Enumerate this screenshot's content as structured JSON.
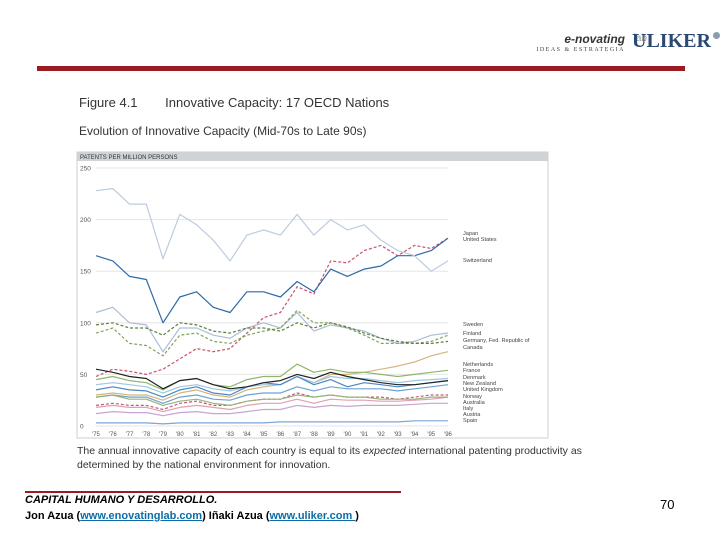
{
  "header": {
    "enovating_logo": "e-novating",
    "enovating_lab": "lab",
    "enovating_sub": "IDEAS & ESTRATEGIA",
    "uliker_logo": "ULIKER"
  },
  "figure": {
    "label": "Figure 4.1",
    "title": "Innovative Capacity: 17 OECD Nations",
    "subtitle": "Evolution of Innovative Capacity (Mid-70s to Late 90s)",
    "caption_before": "The annual innovative capacity of each country is equal to its ",
    "caption_em": "expected",
    "caption_after": " international patenting productivity as determined by the national environment for innovation."
  },
  "chart_data": {
    "type": "line",
    "ylabel": "PATENTS PER MILLION PERSONS",
    "ylim": [
      0,
      250
    ],
    "yticks": [
      0,
      50,
      100,
      150,
      200,
      250
    ],
    "grid": true,
    "legend_position": "right",
    "x": [
      "'75",
      "'76",
      "'77",
      "'78",
      "'79",
      "'80",
      "'81",
      "'82",
      "'83",
      "'84",
      "'85",
      "'86",
      "'87",
      "'88",
      "'89",
      "'90",
      "'91",
      "'92",
      "'93",
      "'94",
      "'95",
      "'96"
    ],
    "series": [
      {
        "name": "Japan",
        "color": "#c9506a",
        "dashed": true,
        "values": [
          48,
          55,
          53,
          50,
          55,
          65,
          75,
          72,
          75,
          90,
          105,
          110,
          135,
          128,
          160,
          158,
          170,
          175,
          165,
          175,
          172,
          182
        ]
      },
      {
        "name": "United States",
        "color": "#2e6aa8",
        "dashed": false,
        "values": [
          165,
          160,
          145,
          142,
          100,
          125,
          130,
          115,
          110,
          130,
          130,
          125,
          140,
          130,
          152,
          145,
          152,
          155,
          165,
          165,
          170,
          182
        ]
      },
      {
        "name": "Switzerland",
        "color": "#bccbe0",
        "dashed": false,
        "values": [
          228,
          230,
          215,
          215,
          162,
          205,
          195,
          180,
          160,
          185,
          190,
          185,
          205,
          185,
          200,
          190,
          195,
          180,
          170,
          165,
          150,
          160
        ]
      },
      {
        "name": "Sweden",
        "color": "#adbdd5",
        "dashed": false,
        "values": [
          110,
          115,
          100,
          98,
          72,
          95,
          95,
          88,
          85,
          95,
          100,
          95,
          110,
          92,
          98,
          95,
          92,
          85,
          80,
          82,
          88,
          90
        ]
      },
      {
        "name": "Finland",
        "color": "#7fa55a",
        "dashed": true,
        "values": [
          90,
          95,
          80,
          78,
          68,
          88,
          90,
          82,
          80,
          88,
          92,
          95,
          112,
          100,
          100,
          95,
          88,
          80,
          80,
          80,
          82,
          88
        ]
      },
      {
        "name": "Germany, Fed. Republic of",
        "color": "#5a7e3a",
        "dashed": true,
        "values": [
          98,
          100,
          95,
          95,
          88,
          100,
          98,
          92,
          90,
          95,
          95,
          92,
          100,
          95,
          100,
          96,
          90,
          85,
          82,
          80,
          80,
          82
        ]
      },
      {
        "name": "Canada",
        "color": "#d7b57b",
        "dashed": false,
        "values": [
          30,
          32,
          30,
          30,
          25,
          32,
          35,
          30,
          28,
          35,
          38,
          40,
          48,
          42,
          50,
          50,
          52,
          55,
          58,
          62,
          68,
          72
        ]
      },
      {
        "name": "Netherlands",
        "color": "#8fb76a",
        "dashed": false,
        "values": [
          45,
          48,
          44,
          42,
          35,
          44,
          46,
          40,
          38,
          45,
          48,
          48,
          60,
          52,
          55,
          52,
          52,
          50,
          48,
          50,
          52,
          54
        ]
      },
      {
        "name": "France",
        "color": "#9ec7e0",
        "dashed": false,
        "values": [
          40,
          42,
          40,
          38,
          32,
          38,
          40,
          36,
          34,
          38,
          40,
          40,
          48,
          42,
          48,
          46,
          46,
          44,
          42,
          44,
          45,
          46
        ]
      },
      {
        "name": "Denmark",
        "color": "#4a88c4",
        "dashed": false,
        "values": [
          35,
          38,
          35,
          34,
          28,
          35,
          38,
          32,
          30,
          38,
          42,
          40,
          48,
          40,
          45,
          38,
          42,
          40,
          38,
          40,
          42,
          44
        ]
      },
      {
        "name": "New Zealand",
        "color": "#6ea2d2",
        "dashed": false,
        "values": [
          28,
          30,
          28,
          28,
          22,
          28,
          30,
          26,
          25,
          30,
          32,
          32,
          38,
          34,
          38,
          36,
          36,
          36,
          34,
          36,
          38,
          40
        ]
      },
      {
        "name": "United Kingdom",
        "color": "#222222",
        "dashed": false,
        "values": [
          55,
          52,
          48,
          46,
          36,
          44,
          46,
          40,
          36,
          38,
          42,
          44,
          50,
          46,
          52,
          48,
          45,
          42,
          40,
          40,
          42,
          44
        ]
      },
      {
        "name": "Norway",
        "color": "#c05a7a",
        "dashed": true,
        "values": [
          20,
          22,
          20,
          20,
          16,
          22,
          24,
          20,
          20,
          24,
          26,
          26,
          32,
          28,
          30,
          28,
          28,
          28,
          26,
          28,
          30,
          30
        ]
      },
      {
        "name": "Australia",
        "color": "#e0a0b0",
        "dashed": false,
        "values": [
          18,
          20,
          18,
          18,
          14,
          18,
          20,
          18,
          16,
          20,
          22,
          22,
          26,
          22,
          26,
          25,
          25,
          24,
          24,
          25,
          26,
          28
        ]
      },
      {
        "name": "Italy",
        "color": "#c8a3d6",
        "dashed": false,
        "values": [
          12,
          14,
          13,
          13,
          10,
          13,
          14,
          12,
          12,
          14,
          16,
          16,
          20,
          18,
          20,
          19,
          20,
          20,
          20,
          21,
          22,
          22
        ]
      },
      {
        "name": "Austria",
        "color": "#99b27a",
        "dashed": false,
        "values": [
          28,
          30,
          26,
          26,
          20,
          24,
          26,
          22,
          20,
          24,
          26,
          26,
          30,
          28,
          30,
          28,
          28,
          26,
          26,
          26,
          28,
          28
        ]
      },
      {
        "name": "Spain",
        "color": "#7aa7d6",
        "dashed": false,
        "values": [
          3,
          3,
          3,
          3,
          2,
          3,
          3,
          3,
          3,
          3,
          3,
          4,
          4,
          4,
          4,
          4,
          4,
          4,
          4,
          5,
          5,
          5
        ]
      }
    ]
  },
  "footer": {
    "title": "CAPITAL HUMANO Y DESARROLLO.",
    "credits_prefix": "Jon Azua (",
    "link1": "www.enovatinglab.com",
    "credits_mid": ") Iñaki Azua (",
    "link2": "www.uliker.com ",
    "credits_suffix": ")",
    "page_number": "70"
  }
}
